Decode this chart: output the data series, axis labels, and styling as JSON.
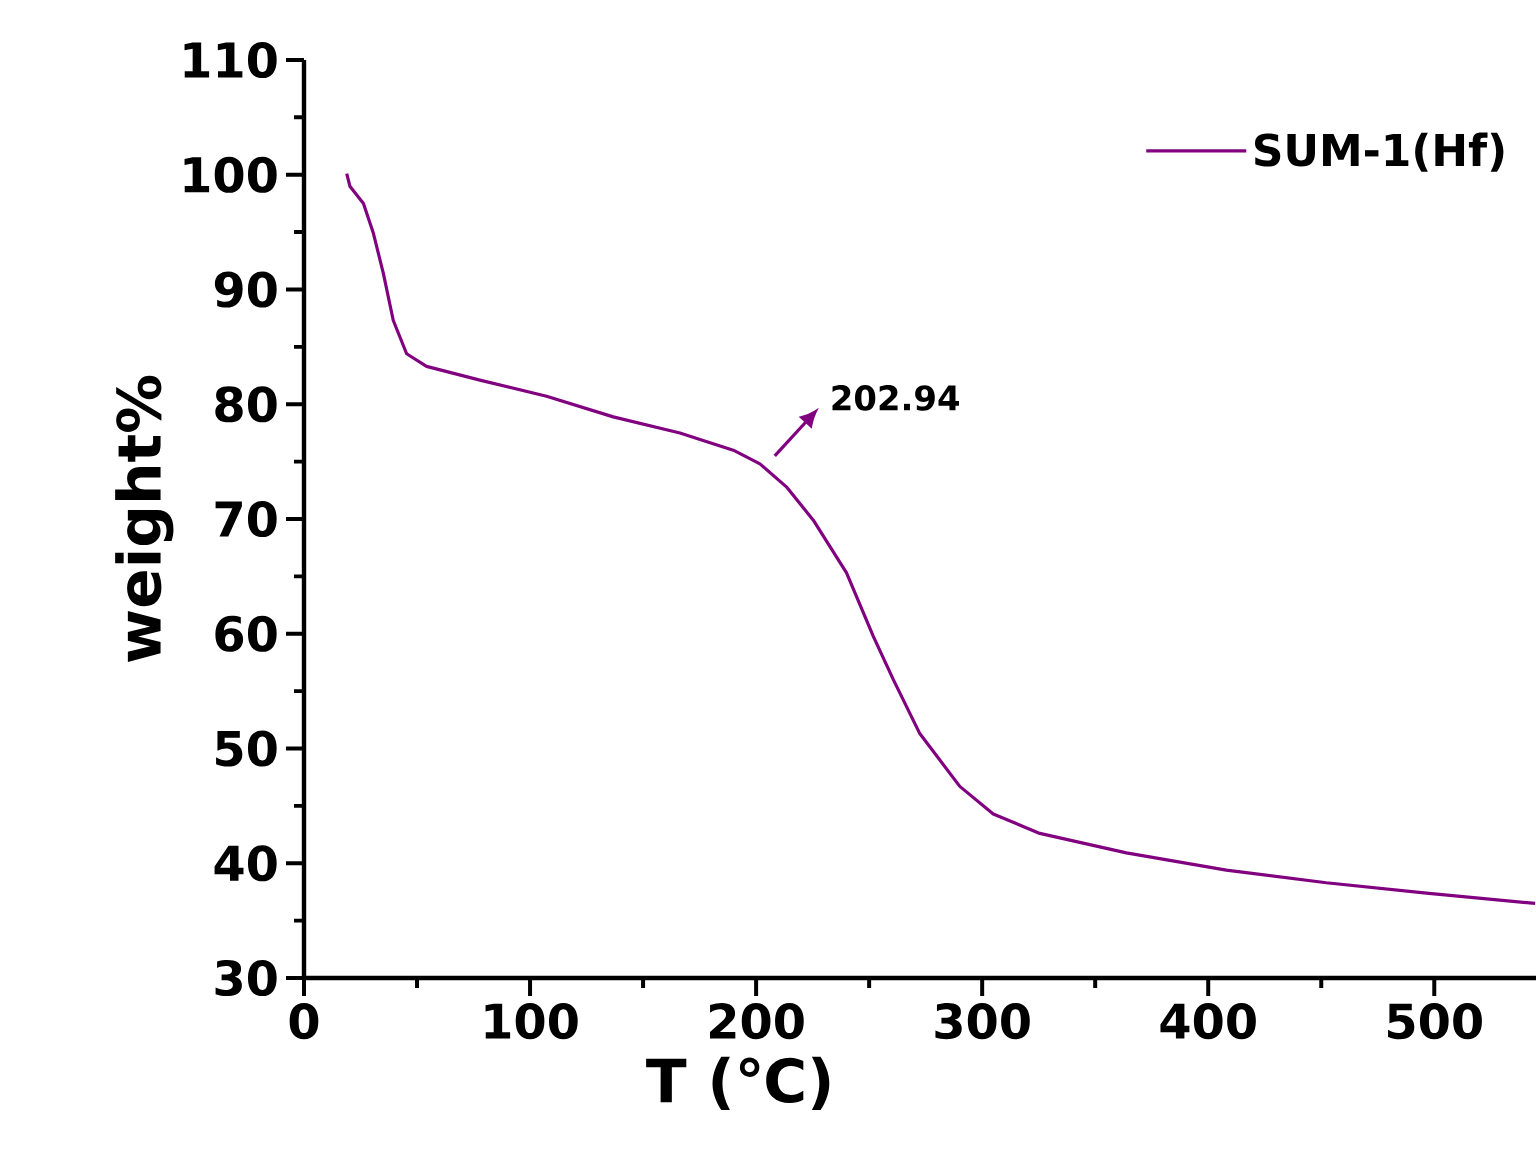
{
  "chart_data": {
    "type": "line",
    "xlabel": "T (℃)",
    "ylabel": "weight%",
    "xlim": [
      0,
      545
    ],
    "ylim": [
      30,
      110
    ],
    "xticks": [
      0,
      100,
      200,
      300,
      400,
      500
    ],
    "yticks": [
      30,
      40,
      50,
      60,
      70,
      80,
      90,
      100,
      110
    ],
    "legend": "top right",
    "grid": false,
    "annotations": [
      {
        "text": "202.94",
        "x": 202.94,
        "y": 74.8
      }
    ],
    "series": [
      {
        "name": "SUM-1(Hf)",
        "color": "#800080",
        "x": [
          18.9,
          20.3,
          26.3,
          30.7,
          35.1,
          39.5,
          45.4,
          54.2,
          77.8,
          107.3,
          136.8,
          166.3,
          189.9,
          201.7,
          213.4,
          225.3,
          240,
          251.8,
          260.7,
          272.4,
          290.1,
          304.9,
          325.5,
          363.8,
          408,
          452.2,
          496.5,
          544.6
        ],
        "values": [
          100.1,
          99.0,
          97.5,
          94.9,
          91.4,
          87.3,
          84.4,
          83.3,
          82.1,
          80.7,
          78.9,
          77.5,
          76.0,
          74.8,
          72.8,
          69.9,
          65.3,
          59.8,
          56.0,
          51.3,
          46.7,
          44.3,
          42.6,
          40.9,
          39.4,
          38.3,
          37.4,
          36.5
        ]
      }
    ]
  }
}
